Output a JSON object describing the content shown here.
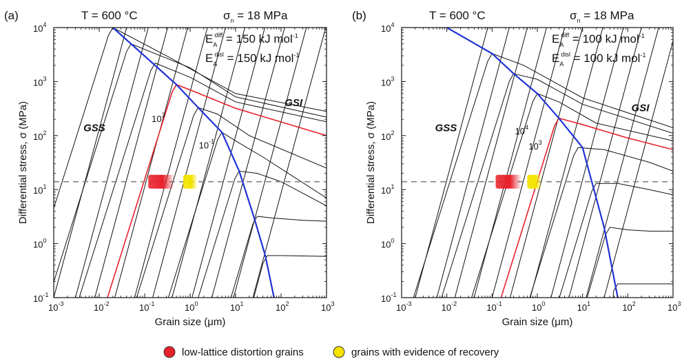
{
  "chart_data": [
    {
      "type": "line",
      "panel_label": "(a)",
      "temperature_label": "T = 600 °C",
      "normal_stress_label": "σn = 18 MPa",
      "energy_lines": [
        {
          "base": "E",
          "sub": "A",
          "sup": "diff",
          "value": "= 150 kJ mol",
          "unit_sup": "-1"
        },
        {
          "base": "E",
          "sub": "A",
          "sup": "disl",
          "value": "= 150 kJ mol",
          "unit_sup": "-1"
        }
      ],
      "xlabel": "Grain size (μm)",
      "ylabel": "Differential stress, σ (MPa)",
      "xscale": "log",
      "yscale": "log",
      "xlim": [
        0.001,
        1000
      ],
      "ylim": [
        0.1,
        10000
      ],
      "x_ticks": [
        {
          "b": "10",
          "e": "-3"
        },
        {
          "b": "10",
          "e": "-2"
        },
        {
          "b": "10",
          "e": "-1"
        },
        {
          "b": "10",
          "e": "0"
        },
        {
          "b": "10",
          "e": "1"
        },
        {
          "b": "10",
          "e": "2"
        },
        {
          "b": "10",
          "e": "3"
        }
      ],
      "y_ticks": [
        {
          "b": "10",
          "e": "-1"
        },
        {
          "b": "10",
          "e": "0"
        },
        {
          "b": "10",
          "e": "1"
        },
        {
          "b": "10",
          "e": "2"
        },
        {
          "b": "10",
          "e": "3"
        },
        {
          "b": "10",
          "e": "4"
        }
      ],
      "region_labels": [
        {
          "text": "GSS",
          "x": 0.0045,
          "y": 120
        },
        {
          "text": "GSI",
          "x": 120,
          "y": 350
        }
      ],
      "curve_labels": [
        {
          "b": "10",
          "e": "3",
          "x": 0.2,
          "y": 180
        },
        {
          "b": "10",
          "e": "-1",
          "x": 2.3,
          "y": 58
        }
      ],
      "reference_stress": 14,
      "recovered_grain_markers": [
        {
          "type": "low-lattice distortion grains",
          "x_range": [
            0.12,
            0.45
          ],
          "y": 14,
          "color": "#e8202a"
        },
        {
          "type": "grains with evidence of recovery",
          "x_range": [
            0.7,
            1.4
          ],
          "y": 14,
          "color": "#f4e400"
        }
      ],
      "boundary": {
        "color": "#1f33d6",
        "x": [
          0.02,
          0.5,
          1.5,
          5,
          12,
          25,
          45,
          70
        ],
        "y": [
          10000,
          880,
          330,
          115,
          22,
          3.2,
          0.6,
          0.1
        ]
      },
      "curves": [
        {
          "highlight": false,
          "peak": [
            0.02,
            10000
          ],
          "tail": [
            [
              0.3,
              3000
            ],
            [
              10,
              600
            ],
            [
              1000,
              280
            ]
          ]
        },
        {
          "highlight": false,
          "peak": [
            0.05,
            5000
          ],
          "tail": [
            [
              1,
              1800
            ],
            [
              10,
              520
            ],
            [
              1000,
              220
            ]
          ]
        },
        {
          "highlight": false,
          "peak": [
            0.17,
            2200
          ],
          "tail": [
            [
              1,
              1200
            ],
            [
              10,
              420
            ],
            [
              1000,
              180
            ]
          ]
        },
        {
          "highlight": true,
          "peak": [
            0.5,
            880
          ],
          "tail": [
            [
              1,
              700
            ],
            [
              10,
              320
            ],
            [
              1000,
              100
            ]
          ]
        },
        {
          "highlight": false,
          "peak": [
            1.5,
            330
          ],
          "tail": [
            [
              4,
              250
            ],
            [
              20,
              100
            ],
            [
              1000,
              25
            ]
          ]
        },
        {
          "highlight": false,
          "peak": [
            5,
            115
          ],
          "tail": [
            [
              10,
              80
            ],
            [
              40,
              40
            ],
            [
              1000,
              7
            ]
          ]
        },
        {
          "highlight": false,
          "peak": [
            12,
            22
          ],
          "tail": [
            [
              30,
              20
            ],
            [
              100,
              14
            ],
            [
              1000,
              5
            ]
          ]
        },
        {
          "highlight": false,
          "peak": [
            30,
            3.2
          ],
          "tail": [
            [
              60,
              3
            ],
            [
              300,
              2.7
            ],
            [
              1000,
              2.6
            ]
          ]
        },
        {
          "highlight": false,
          "peak": [
            50,
            0.6
          ],
          "tail": [
            [
              100,
              0.6
            ],
            [
              1000,
              0.58
            ]
          ]
        }
      ],
      "gss_lines": [
        0.001,
        0.003,
        0.008,
        0.022,
        0.06,
        0.15,
        0.4,
        1.1,
        3,
        9,
        24
      ]
    },
    {
      "type": "line",
      "panel_label": "(b)",
      "temperature_label": "T = 600 °C",
      "normal_stress_label": "σn = 18 MPa",
      "energy_lines": [
        {
          "base": "E",
          "sub": "A",
          "sup": "diff",
          "value": "= 100 kJ mol",
          "unit_sup": "-1"
        },
        {
          "base": "E",
          "sub": "A",
          "sup": "disl",
          "value": "= 100 kJ mol",
          "unit_sup": "-1"
        }
      ],
      "xlabel": "Grain size (μm)",
      "ylabel": "Differential stress, σ (MPa)",
      "xscale": "log",
      "yscale": "log",
      "xlim": [
        0.001,
        1000
      ],
      "ylim": [
        0.1,
        10000
      ],
      "x_ticks": [
        {
          "b": "10",
          "e": "-3"
        },
        {
          "b": "10",
          "e": "-2"
        },
        {
          "b": "10",
          "e": "-1"
        },
        {
          "b": "10",
          "e": "0"
        },
        {
          "b": "10",
          "e": "1"
        },
        {
          "b": "10",
          "e": "2"
        },
        {
          "b": "10",
          "e": "3"
        }
      ],
      "y_ticks": [
        {
          "b": "10",
          "e": "-1"
        },
        {
          "b": "10",
          "e": "0"
        },
        {
          "b": "10",
          "e": "1"
        },
        {
          "b": "10",
          "e": "2"
        },
        {
          "b": "10",
          "e": "3"
        },
        {
          "b": "10",
          "e": "4"
        }
      ],
      "region_labels": [
        {
          "text": "GSS",
          "x": 0.0055,
          "y": 120
        },
        {
          "text": "GSI",
          "x": 120,
          "y": 280
        }
      ],
      "curve_labels": [
        {
          "b": "10",
          "e": "4",
          "x": 0.45,
          "y": 105
        },
        {
          "b": "10",
          "e": "3",
          "x": 0.9,
          "y": 55
        }
      ],
      "reference_stress": 14,
      "recovered_grain_markers": [
        {
          "type": "low-lattice distortion grains",
          "x_range": [
            0.12,
            0.45
          ],
          "y": 14,
          "color": "#e8202a"
        },
        {
          "type": "grains with evidence of recovery",
          "x_range": [
            0.6,
            1.2
          ],
          "y": 14,
          "color": "#f4e400"
        }
      ],
      "boundary": {
        "color": "#1f33d6",
        "x": [
          0.01,
          0.1,
          0.3,
          1,
          3,
          10,
          30,
          60
        ],
        "y": [
          10000,
          3300,
          1400,
          600,
          210,
          60,
          2,
          0.1
        ]
      },
      "curves": [
        {
          "highlight": false,
          "peak": [
            0.1,
            3300
          ],
          "tail": [
            [
              0.5,
              2000
            ],
            [
              10,
              500
            ],
            [
              1000,
              140
            ]
          ]
        },
        {
          "highlight": false,
          "peak": [
            0.3,
            1400
          ],
          "tail": [
            [
              1,
              1100
            ],
            [
              10,
              380
            ],
            [
              1000,
              110
            ]
          ]
        },
        {
          "highlight": false,
          "peak": [
            1,
            600
          ],
          "tail": [
            [
              3,
              420
            ],
            [
              20,
              170
            ],
            [
              1000,
              80
            ]
          ]
        },
        {
          "highlight": true,
          "peak": [
            3,
            210
          ],
          "tail": [
            [
              10,
              160
            ],
            [
              100,
              90
            ],
            [
              1000,
              55
            ]
          ]
        },
        {
          "highlight": false,
          "peak": [
            8,
            60
          ],
          "tail": [
            [
              30,
              55
            ],
            [
              300,
              32
            ],
            [
              1000,
              22
            ]
          ]
        },
        {
          "highlight": false,
          "peak": [
            20,
            13
          ],
          "tail": [
            [
              60,
              13
            ],
            [
              300,
              10
            ],
            [
              1000,
              8
            ]
          ]
        },
        {
          "highlight": false,
          "peak": [
            40,
            2
          ],
          "tail": [
            [
              100,
              1.8
            ],
            [
              300,
              1.7
            ],
            [
              1000,
              1.7
            ]
          ]
        },
        {
          "highlight": false,
          "peak": [
            60,
            0.18
          ],
          "tail": [
            [
              150,
              0.18
            ],
            [
              1000,
              0.18
            ]
          ]
        }
      ],
      "gss_lines": [
        0.002,
        0.006,
        0.015,
        0.04,
        0.1,
        0.25,
        0.7,
        2,
        5,
        12,
        30
      ]
    }
  ],
  "legend": [
    {
      "label": "low-lattice distortion grains",
      "color": "#e8202a"
    },
    {
      "label": "grains with evidence of recovery",
      "color": "#f4e400"
    }
  ]
}
